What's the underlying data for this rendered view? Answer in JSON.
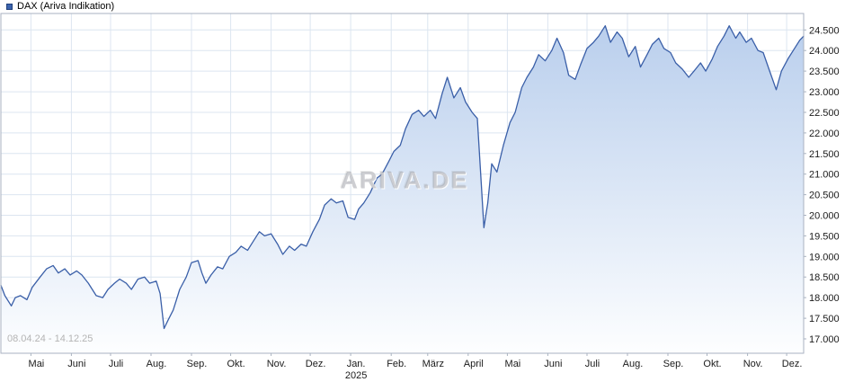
{
  "legend": {
    "label": "DAX (Ariva Indikation)",
    "marker_color": "#3c64ae"
  },
  "watermark": "ARIVA.DE",
  "date_range": "08.04.24 - 14.12.25",
  "colors": {
    "grid": "#dce5f0",
    "border": "#a9b2c0",
    "label": "#1a1a1a",
    "line": "#3a5fa8",
    "fill_top": "#b7cdec",
    "fill_bottom": "#fdfeff"
  },
  "chart_data": {
    "type": "area",
    "title": "DAX (Ariva Indikation)",
    "xlabel": "",
    "ylabel": "",
    "grid": true,
    "legend_position": "top-left",
    "ylim_display": [
      16650,
      24900
    ],
    "xlim_days": [
      0,
      615
    ],
    "y_ticks": [
      {
        "value": 24500,
        "label": "24.500"
      },
      {
        "value": 24000,
        "label": "24.000"
      },
      {
        "value": 23500,
        "label": "23.500"
      },
      {
        "value": 23000,
        "label": "23.000"
      },
      {
        "value": 22500,
        "label": "22.500"
      },
      {
        "value": 22000,
        "label": "22.000"
      },
      {
        "value": 21500,
        "label": "21.500"
      },
      {
        "value": 21000,
        "label": "21.000"
      },
      {
        "value": 20500,
        "label": "20.500"
      },
      {
        "value": 20000,
        "label": "20.000"
      },
      {
        "value": 19500,
        "label": "19.500"
      },
      {
        "value": 19000,
        "label": "19.000"
      },
      {
        "value": 18500,
        "label": "18.500"
      },
      {
        "value": 18000,
        "label": "18.000"
      },
      {
        "value": 17500,
        "label": "17.500"
      },
      {
        "value": 17000,
        "label": "17.000"
      }
    ],
    "x_ticks": [
      {
        "label": "Mai",
        "day": 23
      },
      {
        "label": "Juni",
        "day": 54
      },
      {
        "label": "Juli",
        "day": 84
      },
      {
        "label": "Aug.",
        "day": 115
      },
      {
        "label": "Sep.",
        "day": 146
      },
      {
        "label": "Okt.",
        "day": 176
      },
      {
        "label": "Nov.",
        "day": 207
      },
      {
        "label": "Dez.",
        "day": 237
      },
      {
        "label": "Jan.",
        "day": 268
      },
      {
        "label": "Feb.",
        "day": 299
      },
      {
        "label": "März",
        "day": 327
      },
      {
        "label": "April",
        "day": 358
      },
      {
        "label": "Mai",
        "day": 388
      },
      {
        "label": "Juni",
        "day": 419
      },
      {
        "label": "Juli",
        "day": 449
      },
      {
        "label": "Aug.",
        "day": 480
      },
      {
        "label": "Sep.",
        "day": 511
      },
      {
        "label": "Okt.",
        "day": 541
      },
      {
        "label": "Nov.",
        "day": 572
      },
      {
        "label": "Dez.",
        "day": 602
      }
    ],
    "year_tick": {
      "label": "2025",
      "day": 268
    },
    "series": [
      {
        "name": "DAX",
        "points": [
          [
            0,
            18300
          ],
          [
            3,
            18050
          ],
          [
            8,
            17800
          ],
          [
            11,
            18000
          ],
          [
            15,
            18050
          ],
          [
            20,
            17950
          ],
          [
            24,
            18250
          ],
          [
            30,
            18500
          ],
          [
            35,
            18700
          ],
          [
            40,
            18780
          ],
          [
            44,
            18600
          ],
          [
            49,
            18700
          ],
          [
            53,
            18550
          ],
          [
            58,
            18650
          ],
          [
            62,
            18550
          ],
          [
            67,
            18350
          ],
          [
            73,
            18050
          ],
          [
            78,
            18000
          ],
          [
            82,
            18200
          ],
          [
            87,
            18350
          ],
          [
            91,
            18450
          ],
          [
            96,
            18350
          ],
          [
            100,
            18200
          ],
          [
            105,
            18450
          ],
          [
            110,
            18500
          ],
          [
            114,
            18350
          ],
          [
            119,
            18400
          ],
          [
            122,
            18100
          ],
          [
            125,
            17250
          ],
          [
            128,
            17450
          ],
          [
            132,
            17700
          ],
          [
            137,
            18200
          ],
          [
            142,
            18500
          ],
          [
            146,
            18850
          ],
          [
            151,
            18900
          ],
          [
            154,
            18600
          ],
          [
            157,
            18350
          ],
          [
            161,
            18550
          ],
          [
            166,
            18750
          ],
          [
            170,
            18700
          ],
          [
            175,
            19000
          ],
          [
            180,
            19100
          ],
          [
            184,
            19250
          ],
          [
            189,
            19150
          ],
          [
            193,
            19350
          ],
          [
            198,
            19600
          ],
          [
            202,
            19500
          ],
          [
            207,
            19550
          ],
          [
            212,
            19300
          ],
          [
            216,
            19050
          ],
          [
            221,
            19250
          ],
          [
            225,
            19150
          ],
          [
            230,
            19300
          ],
          [
            234,
            19250
          ],
          [
            239,
            19600
          ],
          [
            244,
            19900
          ],
          [
            248,
            20250
          ],
          [
            253,
            20400
          ],
          [
            257,
            20300
          ],
          [
            262,
            20350
          ],
          [
            266,
            19950
          ],
          [
            271,
            19900
          ],
          [
            274,
            20150
          ],
          [
            278,
            20300
          ],
          [
            283,
            20550
          ],
          [
            288,
            20900
          ],
          [
            292,
            21000
          ],
          [
            297,
            21300
          ],
          [
            301,
            21550
          ],
          [
            306,
            21700
          ],
          [
            310,
            22100
          ],
          [
            315,
            22450
          ],
          [
            320,
            22550
          ],
          [
            324,
            22400
          ],
          [
            329,
            22550
          ],
          [
            333,
            22350
          ],
          [
            338,
            22950
          ],
          [
            342,
            23350
          ],
          [
            347,
            22850
          ],
          [
            352,
            23100
          ],
          [
            356,
            22750
          ],
          [
            361,
            22500
          ],
          [
            365,
            22350
          ],
          [
            368,
            20800
          ],
          [
            370,
            19700
          ],
          [
            373,
            20300
          ],
          [
            376,
            21250
          ],
          [
            380,
            21050
          ],
          [
            385,
            21700
          ],
          [
            390,
            22250
          ],
          [
            394,
            22500
          ],
          [
            399,
            23100
          ],
          [
            403,
            23350
          ],
          [
            408,
            23600
          ],
          [
            412,
            23900
          ],
          [
            417,
            23750
          ],
          [
            422,
            24000
          ],
          [
            426,
            24300
          ],
          [
            431,
            23950
          ],
          [
            435,
            23400
          ],
          [
            440,
            23300
          ],
          [
            444,
            23650
          ],
          [
            449,
            24050
          ],
          [
            454,
            24200
          ],
          [
            458,
            24350
          ],
          [
            463,
            24600
          ],
          [
            467,
            24200
          ],
          [
            472,
            24450
          ],
          [
            476,
            24300
          ],
          [
            481,
            23850
          ],
          [
            486,
            24100
          ],
          [
            490,
            23600
          ],
          [
            495,
            23900
          ],
          [
            499,
            24150
          ],
          [
            504,
            24300
          ],
          [
            508,
            24050
          ],
          [
            513,
            23950
          ],
          [
            517,
            23700
          ],
          [
            522,
            23550
          ],
          [
            527,
            23350
          ],
          [
            531,
            23500
          ],
          [
            536,
            23700
          ],
          [
            540,
            23500
          ],
          [
            545,
            23800
          ],
          [
            549,
            24100
          ],
          [
            554,
            24350
          ],
          [
            558,
            24600
          ],
          [
            563,
            24300
          ],
          [
            566,
            24450
          ],
          [
            571,
            24200
          ],
          [
            575,
            24300
          ],
          [
            580,
            24000
          ],
          [
            584,
            23950
          ],
          [
            589,
            23500
          ],
          [
            594,
            23050
          ],
          [
            598,
            23500
          ],
          [
            603,
            23800
          ],
          [
            607,
            24000
          ],
          [
            612,
            24250
          ],
          [
            615,
            24350
          ]
        ]
      }
    ]
  }
}
